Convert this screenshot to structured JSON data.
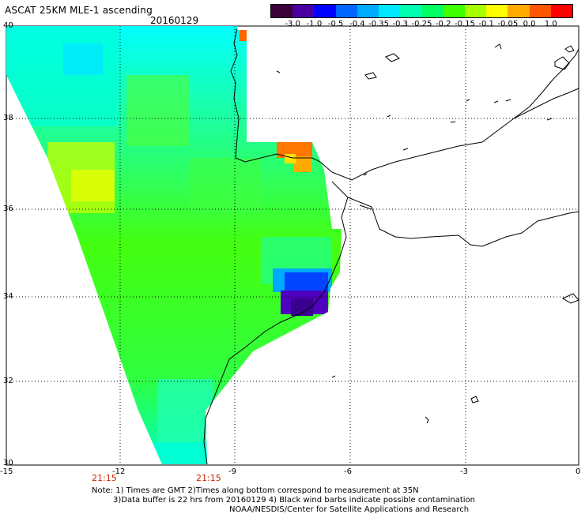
{
  "header": {
    "title": "ASCAT 25KM MLE-1 ascending",
    "date": "20160129"
  },
  "colorbar": {
    "labels": [
      "-3.0",
      "-1.0",
      "-0.5",
      "-0.4",
      "-0.35",
      "-0.3",
      "-0.25",
      "-0.2",
      "-0.15",
      "-0.1",
      "-0.05",
      "0.0",
      "1.0"
    ],
    "colors": [
      "#3a0038",
      "#4a00a0",
      "#0000ff",
      "#0066ff",
      "#00aaff",
      "#00e8ff",
      "#00ffb0",
      "#00ff60",
      "#40ff00",
      "#a8ff00",
      "#ffff00",
      "#ffaa00",
      "#ff5500",
      "#ff0000"
    ]
  },
  "axes": {
    "x_ticks": [
      "-15",
      "-12",
      "-9",
      "-6",
      "-3",
      "0"
    ],
    "y_ticks": [
      "40",
      "38",
      "36",
      "34",
      "32",
      "30"
    ]
  },
  "time_labels": [
    "21:15",
    "21:15"
  ],
  "notes": [
    "Note: 1) Times are GMT 2)Times along bottom correspond to measurement at 35N",
    "3)Data buffer is 22 hrs from 20160129 4) Black wind barbs indicate possible contamination",
    "NOAA/NESDIS/Center for Satellite Applications and Research"
  ]
}
